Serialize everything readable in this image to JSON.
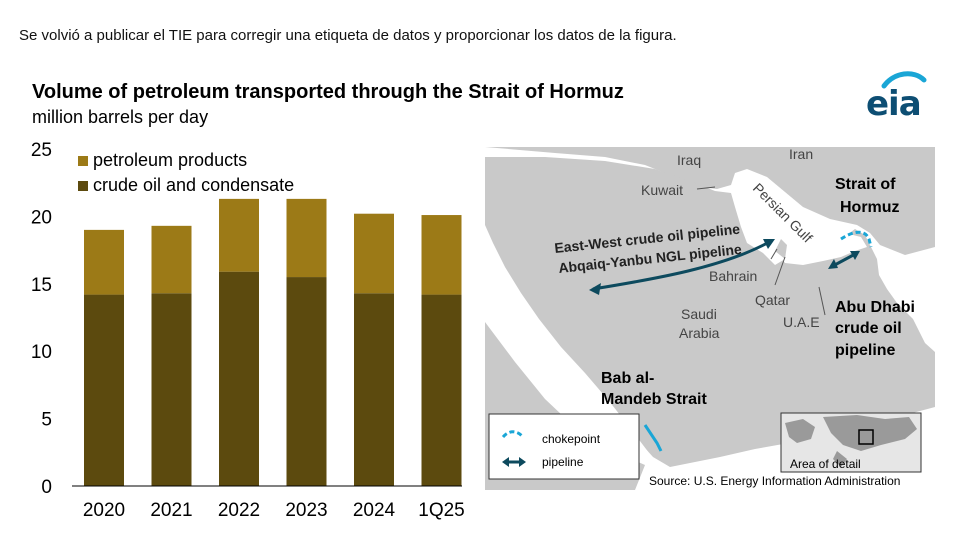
{
  "notice": "Se volvió a publicar el TIE para corregir una etiqueta de datos y proporcionar los datos de la figura.",
  "header": {
    "title": "Volume of petroleum transported through the Strait of Hormuz",
    "subtitle": "million barrels per day",
    "logo_text": "eia"
  },
  "colors": {
    "crude": "#5c4a0e",
    "products": "#9c7a17",
    "map_land": "#c9c9c9",
    "map_water": "#ffffff",
    "chokepoint": "#1aa6d6",
    "pipeline": "#0d4a5e"
  },
  "chart_data": {
    "type": "bar",
    "stacked": true,
    "categories": [
      "2020",
      "2021",
      "2022",
      "2023",
      "2024",
      "1Q25"
    ],
    "series": [
      {
        "name": "crude oil and condensate",
        "values": [
          14.2,
          14.3,
          15.9,
          15.5,
          14.3,
          14.2
        ]
      },
      {
        "name": "petroleum products",
        "values": [
          4.8,
          5.0,
          5.4,
          5.8,
          5.9,
          5.9
        ]
      }
    ],
    "title": "Volume of petroleum transported through the Strait of Hormuz",
    "ylabel": "million barrels per day",
    "ylim": [
      0,
      25
    ],
    "yticks": [
      0,
      5,
      10,
      15,
      20,
      25
    ],
    "grid": false,
    "legend": "top-left"
  },
  "map": {
    "labels": {
      "iraq": "Iraq",
      "iran": "Iran",
      "kuwait": "Kuwait",
      "persian_gulf": "Persian Gulf",
      "bahrain": "Bahrain",
      "qatar": "Qatar",
      "uae": "U.A.E",
      "saudi": "Saudi",
      "arabia": "Arabia",
      "hormuz_1": "Strait of",
      "hormuz_2": "Hormuz",
      "ewp_1": "East-West crude oil pipeline",
      "ewp_2": "Abqaiq-Yanbu NGL pipeline",
      "abu_1": "Abu Dhabi",
      "abu_2": "crude oil",
      "abu_3": "pipeline",
      "bab_1": "Bab al-",
      "bab_2": "Mandeb Strait"
    },
    "legend": {
      "chokepoint": "chokepoint",
      "pipeline": "pipeline"
    },
    "inset_label": "Area of detail"
  },
  "source": "Source: U.S. Energy Information Administration"
}
